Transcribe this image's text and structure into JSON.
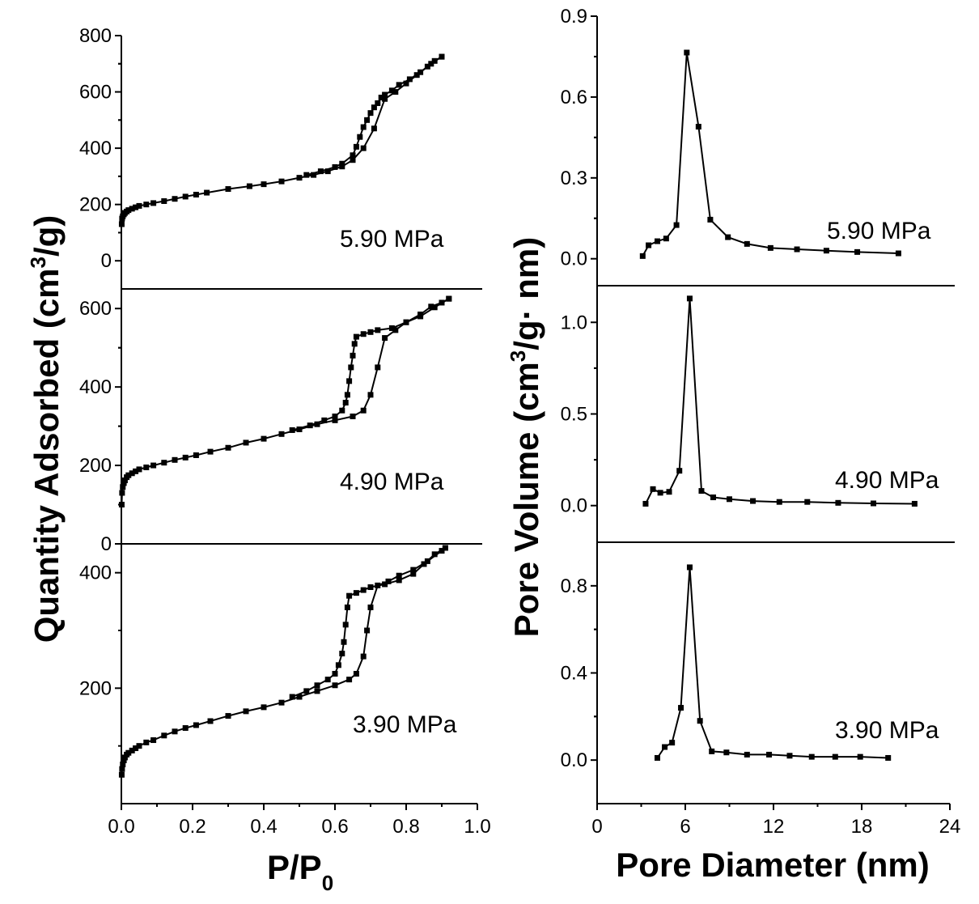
{
  "chart_data": [
    {
      "type": "line",
      "xlabel_main": "P/P",
      "xlabel_sub": "0",
      "ylabel_pre": "Quantity Adsorbed (cm",
      "ylabel_sup": "3",
      "ylabel_post": "/g)",
      "xlim": [
        0.0,
        1.0
      ],
      "xticks": [
        "0.0",
        "0.2",
        "0.4",
        "0.6",
        "0.8",
        "1.0"
      ],
      "panels": [
        {
          "label": "5.90 MPa",
          "ylim": [
            -100,
            800
          ],
          "yticks": [
            0,
            200,
            400,
            600,
            800
          ],
          "adsorption": [
            [
              0.001,
              130
            ],
            [
              0.002,
              150
            ],
            [
              0.004,
              158
            ],
            [
              0.007,
              165
            ],
            [
              0.01,
              170
            ],
            [
              0.015,
              175
            ],
            [
              0.02,
              180
            ],
            [
              0.03,
              185
            ],
            [
              0.04,
              190
            ],
            [
              0.05,
              195
            ],
            [
              0.07,
              200
            ],
            [
              0.09,
              205
            ],
            [
              0.12,
              212
            ],
            [
              0.15,
              220
            ],
            [
              0.18,
              228
            ],
            [
              0.21,
              235
            ],
            [
              0.24,
              242
            ],
            [
              0.3,
              255
            ],
            [
              0.36,
              265
            ],
            [
              0.4,
              272
            ],
            [
              0.45,
              282
            ],
            [
              0.5,
              295
            ],
            [
              0.54,
              305
            ],
            [
              0.58,
              318
            ],
            [
              0.62,
              335
            ],
            [
              0.65,
              358
            ],
            [
              0.68,
              400
            ],
            [
              0.71,
              470
            ],
            [
              0.74,
              575
            ],
            [
              0.77,
              600
            ],
            [
              0.8,
              630
            ],
            [
              0.83,
              660
            ],
            [
              0.86,
              690
            ],
            [
              0.88,
              710
            ],
            [
              0.9,
              725
            ]
          ],
          "desorption": [
            [
              0.9,
              725
            ],
            [
              0.87,
              700
            ],
            [
              0.84,
              670
            ],
            [
              0.81,
              645
            ],
            [
              0.78,
              625
            ],
            [
              0.76,
              605
            ],
            [
              0.74,
              590
            ],
            [
              0.73,
              580
            ],
            [
              0.72,
              560
            ],
            [
              0.71,
              545
            ],
            [
              0.7,
              525
            ],
            [
              0.69,
              500
            ],
            [
              0.68,
              475
            ],
            [
              0.67,
              440
            ],
            [
              0.66,
              405
            ],
            [
              0.65,
              375
            ],
            [
              0.62,
              345
            ],
            [
              0.6,
              333
            ],
            [
              0.56,
              318
            ],
            [
              0.52,
              305
            ]
          ]
        },
        {
          "label": "4.90 MPa",
          "ylim": [
            0,
            650
          ],
          "yticks": [
            0,
            200,
            400,
            600
          ],
          "adsorption": [
            [
              0.001,
              100
            ],
            [
              0.002,
              130
            ],
            [
              0.004,
              145
            ],
            [
              0.007,
              155
            ],
            [
              0.01,
              162
            ],
            [
              0.015,
              170
            ],
            [
              0.02,
              175
            ],
            [
              0.03,
              180
            ],
            [
              0.04,
              185
            ],
            [
              0.05,
              190
            ],
            [
              0.07,
              195
            ],
            [
              0.09,
              200
            ],
            [
              0.12,
              207
            ],
            [
              0.15,
              214
            ],
            [
              0.18,
              220
            ],
            [
              0.21,
              226
            ],
            [
              0.25,
              235
            ],
            [
              0.3,
              245
            ],
            [
              0.35,
              258
            ],
            [
              0.4,
              268
            ],
            [
              0.45,
              280
            ],
            [
              0.5,
              292
            ],
            [
              0.55,
              305
            ],
            [
              0.6,
              315
            ],
            [
              0.65,
              325
            ],
            [
              0.68,
              340
            ],
            [
              0.7,
              380
            ],
            [
              0.72,
              450
            ],
            [
              0.74,
              525
            ],
            [
              0.77,
              545
            ],
            [
              0.8,
              565
            ],
            [
              0.84,
              585
            ],
            [
              0.87,
              605
            ],
            [
              0.9,
              615
            ],
            [
              0.92,
              625
            ]
          ],
          "desorption": [
            [
              0.92,
              625
            ],
            [
              0.88,
              603
            ],
            [
              0.84,
              580
            ],
            [
              0.8,
              565
            ],
            [
              0.76,
              550
            ],
            [
              0.72,
              545
            ],
            [
              0.7,
              540
            ],
            [
              0.68,
              535
            ],
            [
              0.66,
              528
            ],
            [
              0.655,
              510
            ],
            [
              0.65,
              480
            ],
            [
              0.645,
              450
            ],
            [
              0.64,
              415
            ],
            [
              0.635,
              380
            ],
            [
              0.63,
              360
            ],
            [
              0.62,
              340
            ],
            [
              0.6,
              325
            ],
            [
              0.57,
              315
            ],
            [
              0.53,
              302
            ],
            [
              0.48,
              290
            ]
          ]
        },
        {
          "label": "3.90 MPa",
          "ylim": [
            0,
            450
          ],
          "yticks": [
            200,
            400
          ],
          "adsorption": [
            [
              0.001,
              50
            ],
            [
              0.002,
              60
            ],
            [
              0.004,
              68
            ],
            [
              0.007,
              75
            ],
            [
              0.01,
              80
            ],
            [
              0.015,
              85
            ],
            [
              0.02,
              88
            ],
            [
              0.03,
              92
            ],
            [
              0.04,
              96
            ],
            [
              0.05,
              100
            ],
            [
              0.07,
              106
            ],
            [
              0.09,
              110
            ],
            [
              0.12,
              118
            ],
            [
              0.15,
              125
            ],
            [
              0.18,
              131
            ],
            [
              0.21,
              136
            ],
            [
              0.25,
              143
            ],
            [
              0.3,
              152
            ],
            [
              0.35,
              160
            ],
            [
              0.4,
              167
            ],
            [
              0.45,
              175
            ],
            [
              0.5,
              185
            ],
            [
              0.55,
              195
            ],
            [
              0.6,
              205
            ],
            [
              0.64,
              215
            ],
            [
              0.66,
              225
            ],
            [
              0.68,
              255
            ],
            [
              0.69,
              300
            ],
            [
              0.7,
              340
            ],
            [
              0.72,
              378
            ],
            [
              0.75,
              385
            ],
            [
              0.78,
              395
            ],
            [
              0.82,
              405
            ],
            [
              0.86,
              420
            ],
            [
              0.9,
              438
            ],
            [
              0.91,
              443
            ]
          ],
          "desorption": [
            [
              0.91,
              443
            ],
            [
              0.88,
              432
            ],
            [
              0.85,
              415
            ],
            [
              0.82,
              398
            ],
            [
              0.78,
              387
            ],
            [
              0.74,
              380
            ],
            [
              0.7,
              375
            ],
            [
              0.68,
              370
            ],
            [
              0.66,
              365
            ],
            [
              0.64,
              360
            ],
            [
              0.635,
              340
            ],
            [
              0.63,
              310
            ],
            [
              0.625,
              280
            ],
            [
              0.62,
              260
            ],
            [
              0.61,
              240
            ],
            [
              0.6,
              225
            ],
            [
              0.58,
              215
            ],
            [
              0.55,
              205
            ],
            [
              0.52,
              195
            ],
            [
              0.48,
              185
            ]
          ]
        }
      ]
    },
    {
      "type": "line",
      "xlabel": "Pore Diameter (nm)",
      "ylabel_pre": "Pore Volume (cm",
      "ylabel_sup": "3",
      "ylabel_post": "/g· nm)",
      "xlim": [
        0,
        24
      ],
      "xticks": [
        0,
        6,
        12,
        18,
        24
      ],
      "panels": [
        {
          "label": "5.90 MPa",
          "ylim": [
            -0.1,
            0.9
          ],
          "yticks": [
            "0.0",
            "0.3",
            "0.6",
            "0.9"
          ],
          "points": [
            [
              3.1,
              0.01
            ],
            [
              3.5,
              0.05
            ],
            [
              4.1,
              0.065
            ],
            [
              4.7,
              0.075
            ],
            [
              5.4,
              0.125
            ],
            [
              6.1,
              0.765
            ],
            [
              6.9,
              0.49
            ],
            [
              7.7,
              0.145
            ],
            [
              8.9,
              0.08
            ],
            [
              10.2,
              0.055
            ],
            [
              11.8,
              0.04
            ],
            [
              13.6,
              0.035
            ],
            [
              15.6,
              0.03
            ],
            [
              17.7,
              0.025
            ],
            [
              20.5,
              0.02
            ]
          ]
        },
        {
          "label": "4.90 MPa",
          "ylim": [
            -0.2,
            1.2
          ],
          "yticks": [
            "0.0",
            "0.5",
            "1.0"
          ],
          "points": [
            [
              3.3,
              0.01
            ],
            [
              3.8,
              0.09
            ],
            [
              4.3,
              0.07
            ],
            [
              4.9,
              0.075
            ],
            [
              5.6,
              0.19
            ],
            [
              6.3,
              1.13
            ],
            [
              7.1,
              0.08
            ],
            [
              7.9,
              0.045
            ],
            [
              9.0,
              0.035
            ],
            [
              10.6,
              0.025
            ],
            [
              12.4,
              0.02
            ],
            [
              14.3,
              0.02
            ],
            [
              16.4,
              0.015
            ],
            [
              18.8,
              0.012
            ],
            [
              21.6,
              0.01
            ]
          ]
        },
        {
          "label": "3.90 MPa",
          "ylim": [
            -0.2,
            1.0
          ],
          "yticks": [
            "0.0",
            "0.4",
            "0.8"
          ],
          "points": [
            [
              4.1,
              0.01
            ],
            [
              4.6,
              0.06
            ],
            [
              5.1,
              0.08
            ],
            [
              5.7,
              0.24
            ],
            [
              6.3,
              0.885
            ],
            [
              7.0,
              0.18
            ],
            [
              7.8,
              0.04
            ],
            [
              8.8,
              0.035
            ],
            [
              10.2,
              0.025
            ],
            [
              11.7,
              0.025
            ],
            [
              13.1,
              0.02
            ],
            [
              14.6,
              0.015
            ],
            [
              16.2,
              0.015
            ],
            [
              17.9,
              0.015
            ],
            [
              19.8,
              0.01
            ]
          ]
        }
      ]
    }
  ]
}
